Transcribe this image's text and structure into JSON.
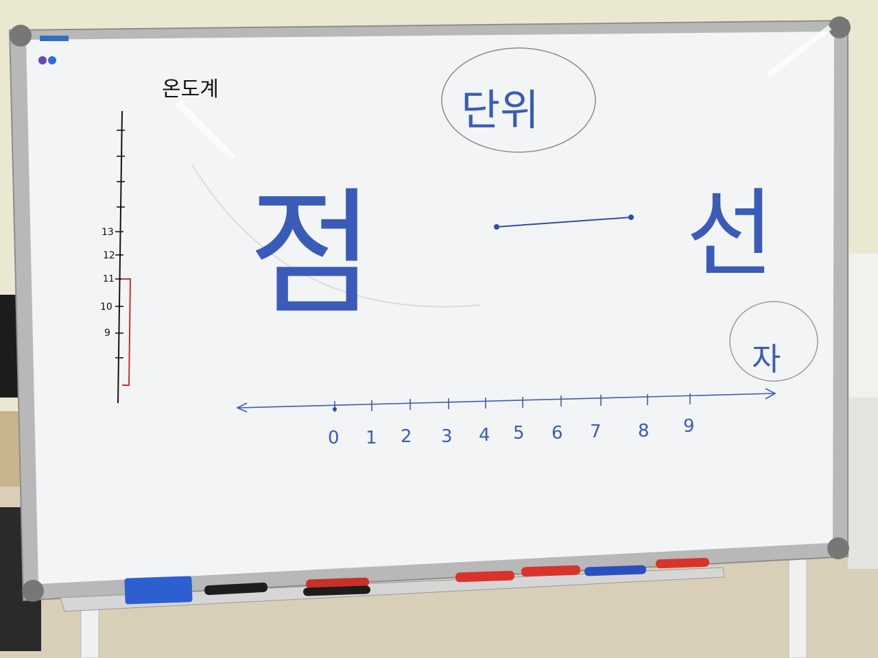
{
  "whiteboard": {
    "heading_thermometer": "온도계",
    "circled_word_top": "단위",
    "big_word_left": "점",
    "big_word_right": "선",
    "circled_word_right": "자",
    "thermometer_labels": [
      "13",
      "12",
      "11",
      "10",
      "9"
    ],
    "number_line_labels": [
      "0",
      "1",
      "2",
      "3",
      "4",
      "5",
      "6",
      "7",
      "8",
      "9"
    ],
    "ink_color": "#3a5bb8",
    "red_marker_color": "#c8302a"
  },
  "tray": {
    "items": [
      "eraser",
      "black-marker",
      "red-black-marker",
      "red-marker",
      "red-marker",
      "blue-marker",
      "red-marker"
    ]
  }
}
